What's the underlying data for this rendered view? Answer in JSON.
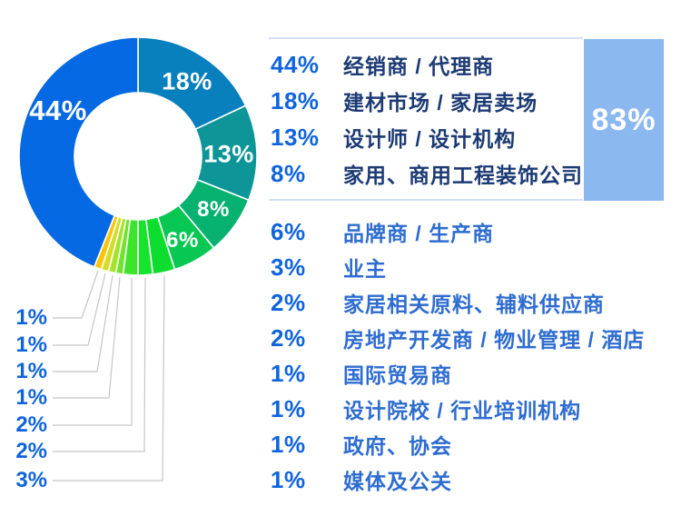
{
  "chart_data": {
    "type": "pie",
    "style": "donut",
    "unit": "%",
    "slices": [
      {
        "category": "经销商 / 代理商",
        "value": 44,
        "color": "#0569e3"
      },
      {
        "category": "建材市场 / 家居卖场",
        "value": 18,
        "color": "#0880bd"
      },
      {
        "category": "设计师 / 设计机构",
        "value": 13,
        "color": "#0d9598"
      },
      {
        "category": "家用、商用工程装饰公司",
        "value": 8,
        "color": "#07b170"
      },
      {
        "category": "品牌商 / 生产商",
        "value": 6,
        "color": "#08c853"
      },
      {
        "category": "业主",
        "value": 3,
        "color": "#0ddd2e"
      },
      {
        "category": "家居相关原料、辅料供应商",
        "value": 2,
        "color": "#16e42c"
      },
      {
        "category": "房地产开发商 / 物业管理 / 酒店",
        "value": 2,
        "color": "#3ce52c"
      },
      {
        "category": "国际贸易商",
        "value": 1,
        "color": "#6fe42b"
      },
      {
        "category": "设计院校 / 行业培训机构",
        "value": 1,
        "color": "#a4e32a"
      },
      {
        "category": "政府、协会",
        "value": 1,
        "color": "#d3dd26"
      },
      {
        "category": "媒体及公关",
        "value": 1,
        "color": "#fdc40d"
      }
    ],
    "clockwise_from_top": [
      1,
      2,
      3,
      4,
      5,
      6,
      7,
      8,
      9,
      10,
      11,
      0
    ],
    "highlight_total": {
      "label": "83%",
      "includes": [
        "44%",
        "18%",
        "13%",
        "8%"
      ]
    },
    "legend_position": "right"
  },
  "legend_top": {
    "highlight": "83%",
    "rows": [
      {
        "pct": "44%",
        "label": "经销商 / 代理商"
      },
      {
        "pct": "18%",
        "label": "建材市场 / 家居卖场"
      },
      {
        "pct": "13%",
        "label": "设计师 / 设计机构"
      },
      {
        "pct": "8%",
        "label": "家用、商用工程装饰公司"
      }
    ]
  },
  "legend_bottom": {
    "rows": [
      {
        "pct": "6%",
        "label": "品牌商 / 生产商"
      },
      {
        "pct": "3%",
        "label": "业主"
      },
      {
        "pct": "2%",
        "label": "家居相关原料、辅料供应商"
      },
      {
        "pct": "2%",
        "label": "房地产开发商 / 物业管理 / 酒店"
      },
      {
        "pct": "1%",
        "label": "国际贸易商"
      },
      {
        "pct": "1%",
        "label": "设计院校 / 行业培训机构"
      },
      {
        "pct": "1%",
        "label": "政府、协会"
      },
      {
        "pct": "1%",
        "label": "媒体及公关"
      }
    ]
  },
  "callouts": [
    "1%",
    "1%",
    "1%",
    "1%",
    "2%",
    "2%",
    "3%"
  ],
  "colors": {
    "accent_blue": "#0f64dd",
    "navy": "#1c3a74",
    "medium_blue": "#2e6cd0",
    "highlight_box": "#8cb8f0",
    "divider": "#d3e1f6",
    "leader_line": "#c5c5c8"
  }
}
